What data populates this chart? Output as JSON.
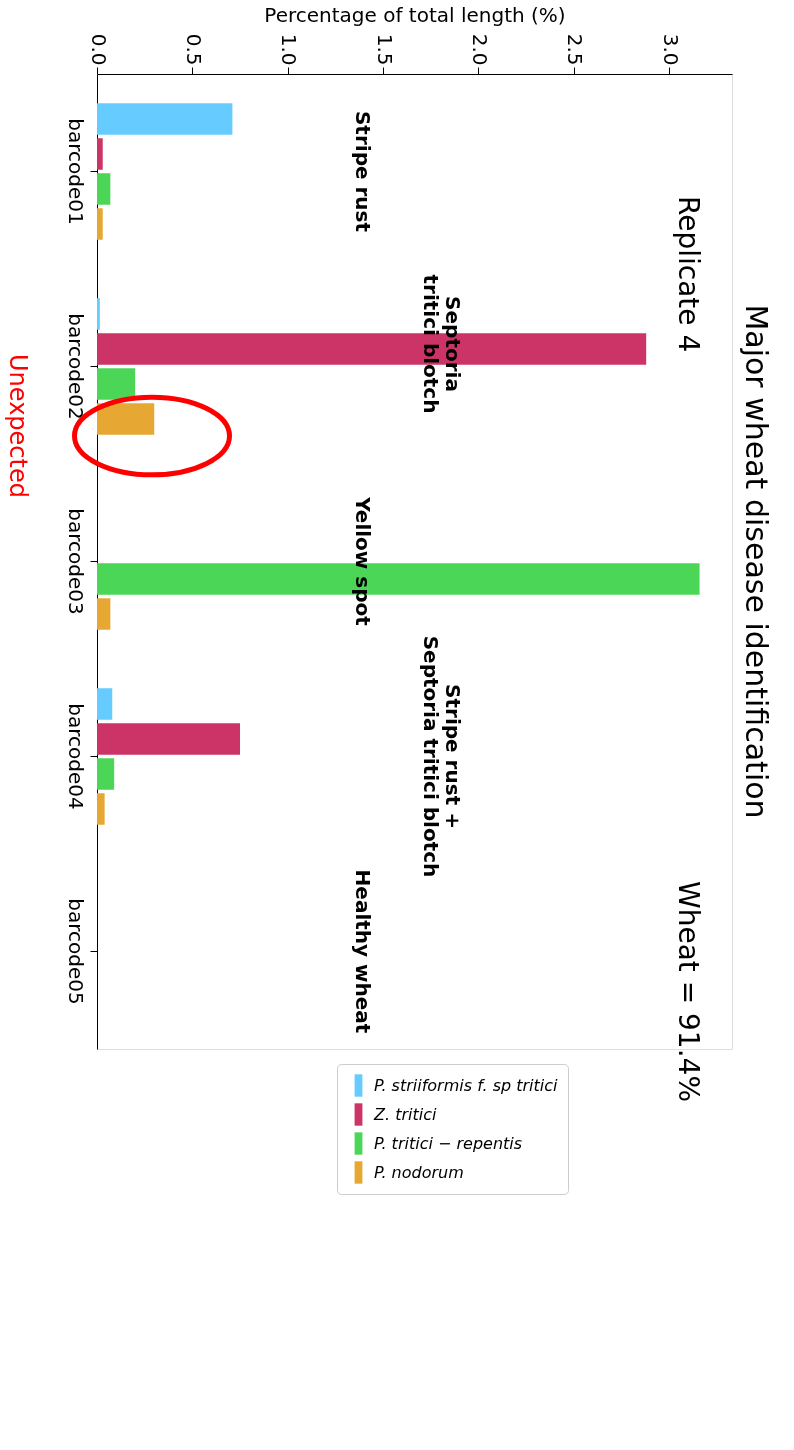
{
  "chart_data": {
    "type": "bar",
    "orientation": "horizontal",
    "title": "Major wheat disease identification",
    "xlabel": "Percentage of total length (%)",
    "categories": [
      "barcode01",
      "barcode02",
      "barcode03",
      "barcode04",
      "barcode05"
    ],
    "series": [
      {
        "name": "P. striiformis f. sp tritici",
        "color": "#66ccff",
        "values": [
          0.71,
          0.015,
          null,
          0.08,
          null
        ]
      },
      {
        "name": "Z. tritici",
        "color": "#cc3366",
        "values": [
          0.03,
          2.88,
          null,
          0.75,
          null
        ]
      },
      {
        "name": "P. tritici − repentis",
        "color": "#4cd658",
        "values": [
          0.07,
          0.2,
          3.16,
          0.09,
          null
        ]
      },
      {
        "name": "P. nodorum",
        "color": "#e6a832",
        "values": [
          0.03,
          0.3,
          0.07,
          0.04,
          null
        ]
      }
    ],
    "xlim": [
      0,
      3.33
    ],
    "xticks": [
      {
        "value": 0,
        "label": "0.0"
      },
      0.5,
      {
        "value": 1,
        "label": "1.0"
      },
      1.5,
      {
        "value": 2,
        "label": "2.0"
      },
      2.5,
      {
        "value": 3,
        "label": "3.0"
      }
    ],
    "grid": false,
    "legend": "bottom",
    "annotations": [
      "Stripe rust",
      "Septoria\ntritici blotch",
      "Yellow spot",
      "Stripe rust +\nSeptoria tritici blotch",
      "Healthy wheat",
      "Replicate 4",
      "Wheat = 91.4%",
      "Unexpected"
    ]
  }
}
